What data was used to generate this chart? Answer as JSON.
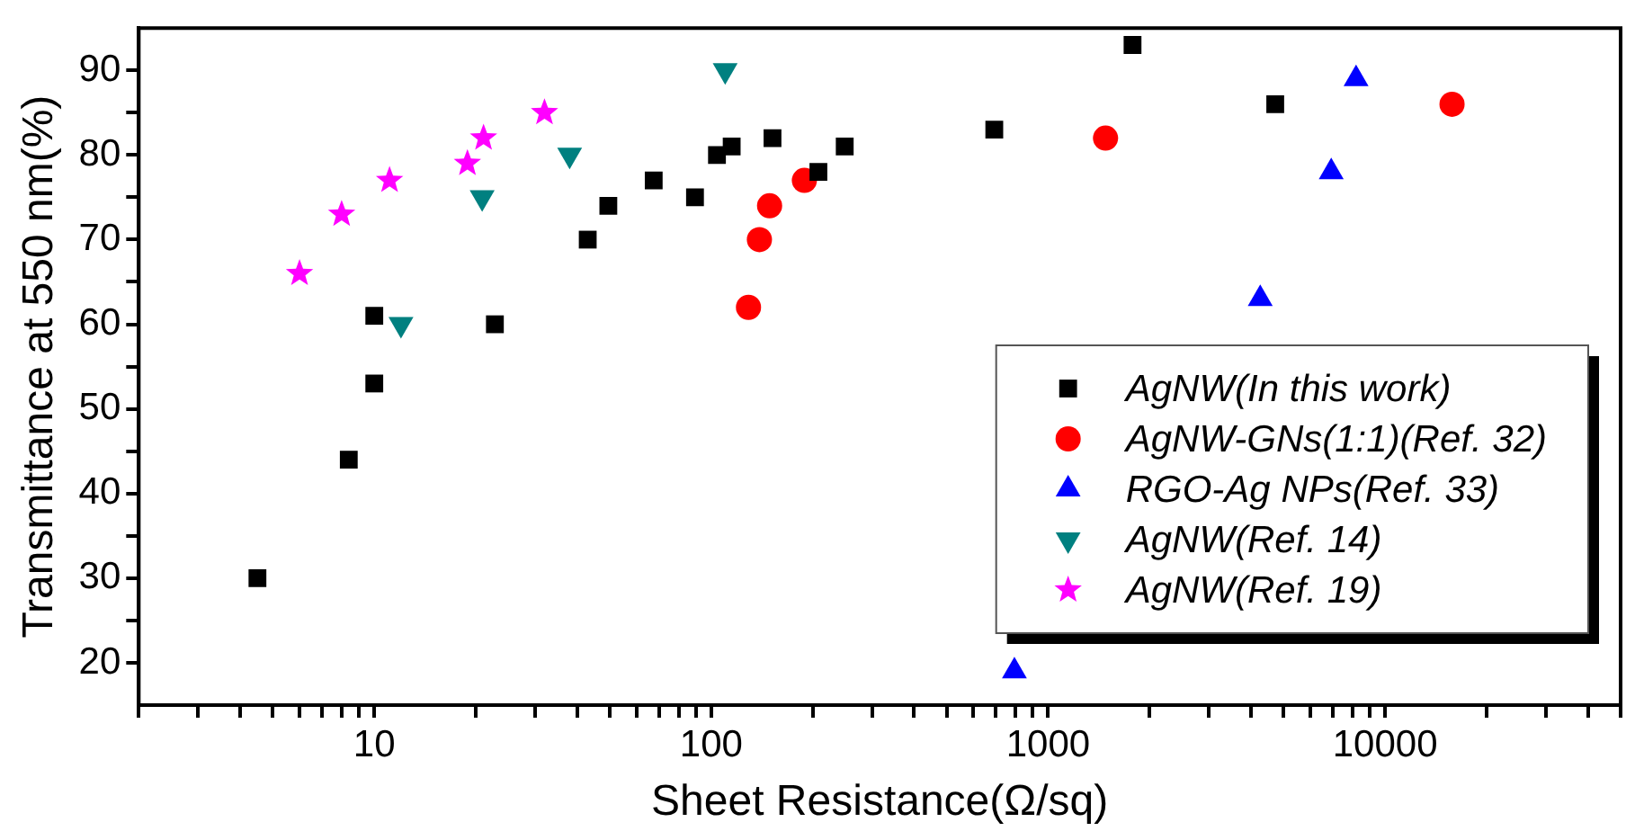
{
  "chart_data": {
    "type": "scatter",
    "xlabel": "Sheet Resistance(Ω/sq)",
    "ylabel": "Transmittance at 550 nm(%)",
    "log": "x",
    "grid": false,
    "legend": "bottom right",
    "xlim": [
      2,
      50000
    ],
    "xticks": [
      {
        "value": 2,
        "label": null
      },
      {
        "value": 3,
        "label": null
      },
      {
        "value": 4,
        "label": null
      },
      {
        "value": 5,
        "label": null
      },
      {
        "value": 6,
        "label": null
      },
      {
        "value": 7,
        "label": null
      },
      {
        "value": 8,
        "label": null
      },
      {
        "value": 9,
        "label": null
      },
      10,
      {
        "value": 20,
        "label": null
      },
      {
        "value": 30,
        "label": null
      },
      {
        "value": 40,
        "label": null
      },
      {
        "value": 50,
        "label": null
      },
      {
        "value": 60,
        "label": null
      },
      {
        "value": 70,
        "label": null
      },
      {
        "value": 80,
        "label": null
      },
      {
        "value": 90,
        "label": null
      },
      100,
      {
        "value": 200,
        "label": null
      },
      {
        "value": 300,
        "label": null
      },
      {
        "value": 400,
        "label": null
      },
      {
        "value": 500,
        "label": null
      },
      {
        "value": 600,
        "label": null
      },
      {
        "value": 700,
        "label": null
      },
      {
        "value": 800,
        "label": null
      },
      {
        "value": 900,
        "label": null
      },
      1000,
      {
        "value": 2000,
        "label": null
      },
      {
        "value": 3000,
        "label": null
      },
      {
        "value": 4000,
        "label": null
      },
      {
        "value": 5000,
        "label": null
      },
      {
        "value": 6000,
        "label": null
      },
      {
        "value": 7000,
        "label": null
      },
      {
        "value": 8000,
        "label": null
      },
      {
        "value": 9000,
        "label": null
      },
      10000,
      {
        "value": 20000,
        "label": null
      },
      {
        "value": 30000,
        "label": null
      },
      {
        "value": 40000,
        "label": null
      },
      {
        "value": 50000,
        "label": null
      }
    ],
    "ylim": [
      15,
      95
    ],
    "yticks": [
      20,
      {
        "value": 25,
        "label": null
      },
      30,
      {
        "value": 35,
        "label": null
      },
      40,
      {
        "value": 45,
        "label": null
      },
      50,
      {
        "value": 55,
        "label": null
      },
      60,
      {
        "value": 65,
        "label": null
      },
      70,
      {
        "value": 75,
        "label": null
      },
      80,
      {
        "value": 85,
        "label": null
      },
      90
    ],
    "series": [
      {
        "name": "AgNW(In this work)",
        "color": "#000000",
        "marker": "square",
        "x": [
          4.5,
          8.4,
          10,
          10,
          22.8,
          43,
          49.5,
          67.5,
          89.5,
          104,
          115,
          152,
          208,
          249,
          692,
          1780,
          4720
        ],
        "values": [
          30,
          44,
          61,
          53,
          60,
          70,
          74,
          77,
          75,
          80,
          81,
          82,
          78,
          81,
          83,
          93,
          86
        ]
      },
      {
        "name": "AgNW-GNs(1:1)(Ref. 32)",
        "color": "#ff0000",
        "marker": "circle",
        "x": [
          129,
          139,
          149,
          189,
          1480,
          15800
        ],
        "values": [
          62,
          70,
          74,
          77,
          82,
          86
        ]
      },
      {
        "name": "RGO-Ag NPs(Ref. 33)",
        "color": "#0000ff",
        "marker": "triangle",
        "x": [
          794,
          4260,
          6920,
          8200
        ],
        "values": [
          19,
          63,
          78,
          89
        ]
      },
      {
        "name": "AgNW(Ref. 14)",
        "color": "#008080",
        "marker": "triangle-down",
        "x": [
          12,
          20.9,
          38,
          110
        ],
        "values": [
          60,
          75,
          80,
          90
        ]
      },
      {
        "name": "AgNW(Ref. 19)",
        "color": "#ff00ff",
        "marker": "star",
        "x": [
          6,
          8,
          11.1,
          18.9,
          21.1,
          32
        ],
        "values": [
          66,
          73,
          77,
          79,
          82,
          85
        ]
      }
    ]
  }
}
